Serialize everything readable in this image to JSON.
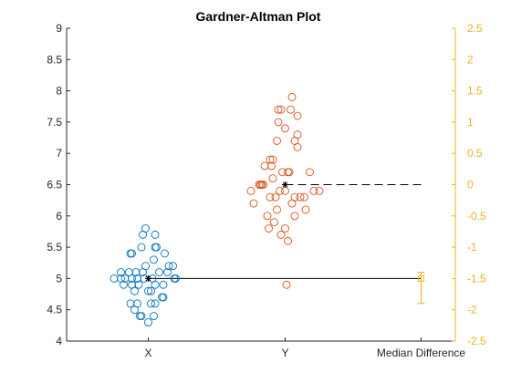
{
  "chart_data": {
    "type": "scatter",
    "title": "Gardner-Altman Plot",
    "categories": [
      "X",
      "Y",
      "Median Difference"
    ],
    "y_left": {
      "lim": [
        4,
        9
      ],
      "ticks": [
        "4",
        "4.5",
        "5",
        "5.5",
        "6",
        "6.5",
        "7",
        "7.5",
        "8",
        "8.5",
        "9"
      ],
      "tick_values": [
        4,
        4.5,
        5,
        5.5,
        6,
        6.5,
        7,
        7.5,
        8,
        8.5,
        9
      ]
    },
    "y_right": {
      "lim": [
        -2.5,
        2.5
      ],
      "ticks": [
        "-2.5",
        "-2",
        "-1.5",
        "-1",
        "-0.5",
        "0",
        "0.5",
        "1",
        "1.5",
        "2",
        "2.5"
      ],
      "tick_values": [
        -2.5,
        -2,
        -1.5,
        -1,
        -0.5,
        0,
        0.5,
        1,
        1.5,
        2,
        2.5
      ],
      "color": "#EDB120"
    },
    "grid": false,
    "series": [
      {
        "category": "X",
        "color": "#0072BD",
        "median": 5.0,
        "points": [
          {
            "x": -0.25,
            "y": 5.0
          },
          {
            "x": -0.2,
            "y": 5.0
          },
          {
            "x": -0.17,
            "y": 5.0
          },
          {
            "x": -0.12,
            "y": 5.0
          },
          {
            "x": -0.08,
            "y": 5.0
          },
          {
            "x": -0.03,
            "y": 5.0
          },
          {
            "x": 0.03,
            "y": 5.0
          },
          {
            "x": 0.2,
            "y": 5.0
          },
          {
            "x": 0.19,
            "y": 5.0
          },
          {
            "x": -0.02,
            "y": 5.8
          },
          {
            "x": -0.04,
            "y": 5.7
          },
          {
            "x": 0.05,
            "y": 5.7
          },
          {
            "x": -0.13,
            "y": 5.4
          },
          {
            "x": -0.12,
            "y": 5.4
          },
          {
            "x": 0.05,
            "y": 5.5
          },
          {
            "x": 0.06,
            "y": 5.5
          },
          {
            "x": -0.05,
            "y": 5.5
          },
          {
            "x": 0.12,
            "y": 5.4
          },
          {
            "x": 0.04,
            "y": 5.3
          },
          {
            "x": 0.15,
            "y": 5.2
          },
          {
            "x": 0.18,
            "y": 5.2
          },
          {
            "x": -0.02,
            "y": 5.2
          },
          {
            "x": 0.14,
            "y": 5.1
          },
          {
            "x": 0.08,
            "y": 5.1
          },
          {
            "x": -0.04,
            "y": 5.1
          },
          {
            "x": -0.09,
            "y": 5.1
          },
          {
            "x": -0.14,
            "y": 5.1
          },
          {
            "x": -0.2,
            "y": 5.1
          },
          {
            "x": -0.07,
            "y": 4.9
          },
          {
            "x": 0.05,
            "y": 4.9
          },
          {
            "x": -0.12,
            "y": 4.9
          },
          {
            "x": 0.11,
            "y": 4.9
          },
          {
            "x": -0.18,
            "y": 4.9
          },
          {
            "x": -0.1,
            "y": 4.8
          },
          {
            "x": 0.02,
            "y": 4.8
          },
          {
            "x": 0.0,
            "y": 4.8
          },
          {
            "x": 0.11,
            "y": 4.7
          },
          {
            "x": 0.1,
            "y": 4.7
          },
          {
            "x": -0.13,
            "y": 4.6
          },
          {
            "x": -0.08,
            "y": 4.6
          },
          {
            "x": 0.02,
            "y": 4.6
          },
          {
            "x": 0.05,
            "y": 4.6
          },
          {
            "x": -0.1,
            "y": 4.5
          },
          {
            "x": -0.06,
            "y": 4.4
          },
          {
            "x": -0.05,
            "y": 4.4
          },
          {
            "x": 0.04,
            "y": 4.4
          },
          {
            "x": 0.0,
            "y": 4.3
          }
        ]
      },
      {
        "category": "Y",
        "color": "#D95319",
        "median": 6.5,
        "points": [
          {
            "x": 0.05,
            "y": 7.9
          },
          {
            "x": -0.05,
            "y": 7.7
          },
          {
            "x": -0.03,
            "y": 7.7
          },
          {
            "x": 0.04,
            "y": 7.7
          },
          {
            "x": 0.09,
            "y": 7.6
          },
          {
            "x": -0.05,
            "y": 7.5
          },
          {
            "x": 0.0,
            "y": 7.4
          },
          {
            "x": 0.09,
            "y": 7.3
          },
          {
            "x": -0.06,
            "y": 7.2
          },
          {
            "x": 0.07,
            "y": 7.2
          },
          {
            "x": 0.09,
            "y": 7.1
          },
          {
            "x": -0.11,
            "y": 6.9
          },
          {
            "x": -0.09,
            "y": 6.9
          },
          {
            "x": -0.15,
            "y": 6.8
          },
          {
            "x": -0.1,
            "y": 6.8
          },
          {
            "x": 0.02,
            "y": 6.7
          },
          {
            "x": -0.02,
            "y": 6.7
          },
          {
            "x": 0.03,
            "y": 6.7
          },
          {
            "x": 0.18,
            "y": 6.7
          },
          {
            "x": -0.25,
            "y": 6.4
          },
          {
            "x": -0.19,
            "y": 6.5
          },
          {
            "x": -0.18,
            "y": 6.5
          },
          {
            "x": -0.17,
            "y": 6.5
          },
          {
            "x": -0.16,
            "y": 6.5
          },
          {
            "x": -0.09,
            "y": 6.6
          },
          {
            "x": -0.11,
            "y": 6.3
          },
          {
            "x": -0.07,
            "y": 6.3
          },
          {
            "x": 0.07,
            "y": 6.3
          },
          {
            "x": 0.11,
            "y": 6.3
          },
          {
            "x": 0.14,
            "y": 6.3
          },
          {
            "x": 0.21,
            "y": 6.4
          },
          {
            "x": 0.25,
            "y": 6.4
          },
          {
            "x": 0.0,
            "y": 6.4
          },
          {
            "x": -0.04,
            "y": 6.4
          },
          {
            "x": 0.05,
            "y": 6.2
          },
          {
            "x": -0.23,
            "y": 6.2
          },
          {
            "x": -0.06,
            "y": 6.1
          },
          {
            "x": 0.15,
            "y": 6.1
          },
          {
            "x": 0.07,
            "y": 6.0
          },
          {
            "x": -0.13,
            "y": 6.0
          },
          {
            "x": -0.08,
            "y": 5.9
          },
          {
            "x": -0.12,
            "y": 5.8
          },
          {
            "x": 0.0,
            "y": 5.8
          },
          {
            "x": -0.03,
            "y": 5.7
          },
          {
            "x": 0.02,
            "y": 5.6
          },
          {
            "x": 0.01,
            "y": 4.9
          }
        ]
      }
    ],
    "median_difference": {
      "value": 1.5,
      "right_axis_value": -1.5,
      "ci_lower": -1.9,
      "ci_upper": -1.4,
      "color": "#EDB120"
    }
  }
}
